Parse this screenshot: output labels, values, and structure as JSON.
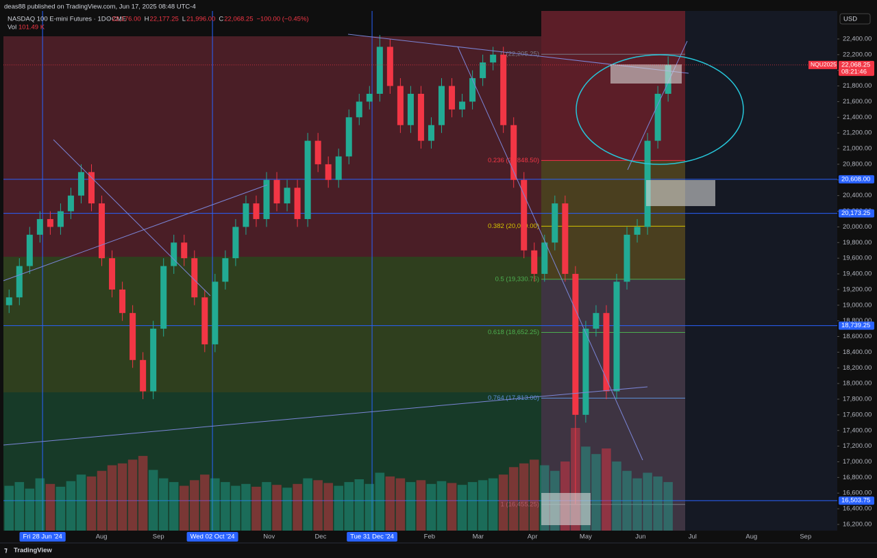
{
  "header": {
    "published": "deas88 published on TradingView.com, Jun 17, 2025 08:48 UTC-4",
    "symbol": "NASDAQ 100 E-mini Futures · 1D · CME",
    "ohlc": [
      {
        "key": "O",
        "value": "22,176.00"
      },
      {
        "key": "H",
        "value": "22,177.25"
      },
      {
        "key": "L",
        "value": "21,996.00"
      },
      {
        "key": "C",
        "value": "22,068.25"
      }
    ],
    "change": "−100.00 (−0.45%)",
    "volume_key": "Vol",
    "volume_value": "101.49 K",
    "currency": "USD"
  },
  "footer": "TradingView",
  "chart_data": {
    "type": "candlestick",
    "x": [
      -13,
      -9,
      -5,
      -1,
      3,
      7,
      11,
      15,
      19,
      23,
      27,
      31,
      35,
      39,
      43,
      47,
      51,
      55,
      59,
      63,
      67,
      71,
      75,
      79,
      83,
      87,
      91,
      95,
      99,
      103,
      107,
      111,
      115,
      119,
      123,
      127,
      131,
      135,
      139,
      143,
      147,
      151,
      155,
      159,
      163,
      167,
      171,
      175,
      179,
      183,
      187,
      191,
      195,
      199,
      203,
      207,
      211,
      215,
      219,
      223,
      227,
      231,
      235,
      239,
      243
    ],
    "open": [
      19000,
      19100,
      19500,
      19900,
      20100,
      20000,
      20200,
      20400,
      20700,
      20300,
      19600,
      19200,
      18900,
      18300,
      17900,
      18700,
      19500,
      19800,
      19600,
      19100,
      18500,
      19300,
      19600,
      20000,
      20300,
      20100,
      20600,
      20300,
      20500,
      20100,
      21100,
      20800,
      20600,
      20900,
      21400,
      21600,
      21700,
      22300,
      21800,
      21300,
      21700,
      21100,
      21300,
      21800,
      21500,
      21600,
      21900,
      22100,
      22200,
      21300,
      20600,
      19700,
      19400,
      19800,
      20300,
      19400,
      17600,
      18700,
      18900,
      17900,
      19300,
      19900,
      20000,
      21100,
      21700
    ],
    "high": [
      19200,
      19600,
      20000,
      20200,
      20200,
      20300,
      20500,
      20800,
      20800,
      20400,
      19700,
      19300,
      19000,
      18400,
      18800,
      19600,
      19900,
      19900,
      19700,
      19200,
      19400,
      19700,
      20100,
      20400,
      20400,
      20700,
      20700,
      20600,
      20600,
      21200,
      21200,
      20900,
      21000,
      21500,
      21700,
      21800,
      22450,
      22400,
      21900,
      21800,
      21800,
      21400,
      21900,
      21900,
      21700,
      22000,
      22200,
      22300,
      22300,
      21400,
      20700,
      19800,
      19900,
      20400,
      20400,
      19500,
      18800,
      19000,
      19000,
      19400,
      20000,
      20100,
      21200,
      21800,
      22177.25
    ],
    "low": [
      18900,
      19000,
      19400,
      19800,
      19900,
      19900,
      20100,
      20300,
      20200,
      19500,
      19100,
      18800,
      18200,
      17800,
      17800,
      18600,
      19400,
      19500,
      19000,
      18400,
      18400,
      19200,
      19500,
      19900,
      20000,
      20000,
      20200,
      20200,
      20000,
      20000,
      20700,
      20500,
      20500,
      20800,
      21300,
      21500,
      21600,
      21700,
      21200,
      21200,
      21000,
      21000,
      21200,
      21400,
      21400,
      21500,
      21800,
      22000,
      21200,
      20500,
      19600,
      19300,
      19300,
      19700,
      19300,
      16460,
      17500,
      18600,
      17800,
      17800,
      19200,
      19800,
      19900,
      21000,
      21600
    ],
    "close": [
      19100,
      19500,
      19900,
      20100,
      20000,
      20200,
      20400,
      20700,
      20300,
      19600,
      19200,
      18900,
      18300,
      17900,
      18700,
      19500,
      19800,
      19600,
      19100,
      18500,
      19300,
      19600,
      20000,
      20300,
      20100,
      20600,
      20300,
      20500,
      20100,
      21100,
      20800,
      20600,
      20900,
      21400,
      21600,
      21700,
      22300,
      21800,
      21300,
      21700,
      21100,
      21300,
      21800,
      21500,
      21600,
      21900,
      22100,
      22200,
      21300,
      20600,
      19700,
      19400,
      19800,
      20300,
      19400,
      17600,
      18700,
      18900,
      17900,
      19300,
      19900,
      20000,
      21100,
      21700,
      22068.25
    ],
    "volume": [
      480,
      520,
      450,
      560,
      500,
      470,
      530,
      600,
      580,
      640,
      700,
      720,
      760,
      800,
      650,
      560,
      520,
      480,
      540,
      600,
      560,
      520,
      480,
      500,
      470,
      520,
      490,
      460,
      500,
      560,
      540,
      510,
      480,
      520,
      550,
      500,
      620,
      580,
      560,
      520,
      540,
      500,
      530,
      510,
      490,
      520,
      540,
      560,
      600,
      680,
      720,
      760,
      700,
      640,
      740,
      1100,
      900,
      820,
      880,
      740,
      640,
      560,
      620,
      580,
      520
    ],
    "up_color": "#22ab94",
    "down_color": "#f23645",
    "xlim": [
      -15.2,
      308.7
    ],
    "ylim": [
      16121,
      22758
    ],
    "xticks": [
      {
        "value": 0,
        "label": "Fri 28 Jun '24"
      },
      {
        "value": 22.9,
        "label": "Aug"
      },
      {
        "value": 45,
        "label": "Sep"
      },
      {
        "value": 66,
        "label": "Wed 02 Oct '24"
      },
      {
        "value": 88,
        "label": "Nov"
      },
      {
        "value": 108,
        "label": "Dec"
      },
      {
        "value": 128,
        "label": "Tue 31 Dec '24"
      },
      {
        "value": 150.3,
        "label": "Feb"
      },
      {
        "value": 169.2,
        "label": "Mar"
      },
      {
        "value": 190.3,
        "label": "Apr"
      },
      {
        "value": 211,
        "label": "May"
      },
      {
        "value": 232.3,
        "label": "Jun"
      },
      {
        "value": 252.5,
        "label": "Jul"
      },
      {
        "value": 275.4,
        "label": "Aug"
      },
      {
        "value": 296.4,
        "label": "Sep"
      }
    ],
    "vlines": [
      0,
      66,
      128
    ],
    "yticks": [
      {
        "value": 16200,
        "label": "16,200.00"
      },
      {
        "value": 16400,
        "label": "16,400.00"
      },
      {
        "value": 16600,
        "label": "16,600.00"
      },
      {
        "value": 16800,
        "label": "16,800.00"
      },
      {
        "value": 17000,
        "label": "17,000.00"
      },
      {
        "value": 17200,
        "label": "17,200.00"
      },
      {
        "value": 17400,
        "label": "17,400.00"
      },
      {
        "value": 17600,
        "label": "17,600.00"
      },
      {
        "value": 17800,
        "label": "17,800.00"
      },
      {
        "value": 18000,
        "label": "18,000.00"
      },
      {
        "value": 18200,
        "label": "18,200.00"
      },
      {
        "value": 18400,
        "label": "18,400.00"
      },
      {
        "value": 18600,
        "label": "18,600.00"
      },
      {
        "value": 18800,
        "label": "18,800.00"
      },
      {
        "value": 19000,
        "label": "19,000.00"
      },
      {
        "value": 19200,
        "label": "19,200.00"
      },
      {
        "value": 19400,
        "label": "19,400.00"
      },
      {
        "value": 19600,
        "label": "19,600.00"
      },
      {
        "value": 19800,
        "label": "19,800.00"
      },
      {
        "value": 20000,
        "label": "20,000.00"
      },
      {
        "value": 20200,
        "label": "20,200.00"
      },
      {
        "value": 20400,
        "label": "20,400.00"
      },
      {
        "value": 20600,
        "label": "20,600.00"
      },
      {
        "value": 20800,
        "label": "20,800.00"
      },
      {
        "value": 21000,
        "label": "21,000.00"
      },
      {
        "value": 21200,
        "label": "21,200.00"
      },
      {
        "value": 21400,
        "label": "21,400.00"
      },
      {
        "value": 21600,
        "label": "21,600.00"
      },
      {
        "value": 21800,
        "label": "21,800.00"
      },
      {
        "value": 22000,
        "label": "22,000.00"
      },
      {
        "value": 22200,
        "label": "22,200.00"
      },
      {
        "value": 22400,
        "label": "22,400.00"
      }
    ],
    "levels": [
      {
        "value": 20608,
        "label": "20,608.00"
      },
      {
        "value": 20173.25,
        "label": "20,173.25"
      },
      {
        "value": 18739.25,
        "label": "18,739.25"
      },
      {
        "value": 16503.75,
        "label": "16,503.75"
      }
    ],
    "level_color": "#2962ff",
    "fib": [
      {
        "price": 22205.25,
        "label": "0 (22,205.25)",
        "color": "#787b86"
      },
      {
        "price": 20848.5,
        "label": "0.236 (20,848.50)",
        "color": "#f23645"
      },
      {
        "price": 20009,
        "label": "0.382 (20,009.00)",
        "color": "#d4c300"
      },
      {
        "price": 19330.75,
        "label": "0.5 (19,330.75)",
        "color": "#4caf50"
      },
      {
        "price": 18652.25,
        "label": "0.618 (18,652.25)",
        "color": "#4caf50"
      },
      {
        "price": 17813,
        "label": "0.764 (17,813.00)",
        "color": "#5b8fd6"
      },
      {
        "price": 16455.25,
        "label": "1 (16,455.25)",
        "color": "#787b86"
      }
    ],
    "last": {
      "symbol": "NQU2025",
      "value": 22068.25,
      "label": "22,068.25",
      "countdown": "08:21:46",
      "color": "#f23645"
    }
  }
}
